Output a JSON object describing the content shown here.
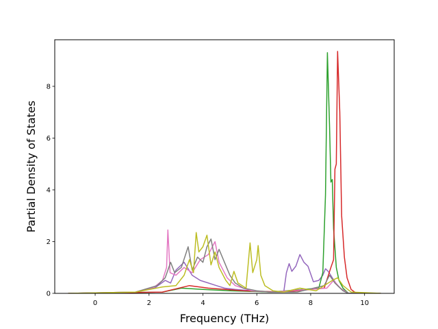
{
  "chart_data": {
    "type": "line",
    "title": "",
    "xlabel": "Frequency (THz)",
    "ylabel": "Partial Density of States",
    "xlim": [
      -1.5,
      11.1
    ],
    "ylim": [
      0,
      9.8
    ],
    "xticks": [
      0,
      2,
      4,
      6,
      8,
      10
    ],
    "yticks": [
      0,
      2,
      4,
      6,
      8
    ],
    "grid": false,
    "legend": "none",
    "series": [
      {
        "color": "#9467bd",
        "points": [
          [
            -1,
            0
          ],
          [
            1.5,
            0.05
          ],
          [
            2.2,
            0.2
          ],
          [
            2.6,
            0.5
          ],
          [
            2.8,
            0.4
          ],
          [
            3.0,
            0.9
          ],
          [
            3.3,
            1.2
          ],
          [
            3.6,
            0.7
          ],
          [
            3.9,
            0.5
          ],
          [
            4.2,
            0.4
          ],
          [
            4.5,
            0.3
          ],
          [
            4.8,
            0.2
          ],
          [
            5.2,
            0.15
          ],
          [
            5.8,
            0.1
          ],
          [
            6.5,
            0.05
          ],
          [
            7.0,
            0.05
          ],
          [
            7.1,
            0.8
          ],
          [
            7.2,
            1.15
          ],
          [
            7.3,
            0.85
          ],
          [
            7.45,
            1.05
          ],
          [
            7.6,
            1.5
          ],
          [
            7.75,
            1.2
          ],
          [
            7.9,
            1.05
          ],
          [
            8.0,
            0.75
          ],
          [
            8.1,
            0.45
          ],
          [
            8.3,
            0.5
          ],
          [
            8.45,
            0.7
          ],
          [
            8.55,
            0.95
          ],
          [
            8.65,
            0.85
          ],
          [
            8.8,
            0.6
          ],
          [
            9.0,
            0.3
          ],
          [
            9.2,
            0.1
          ],
          [
            9.4,
            0
          ],
          [
            10.6,
            0
          ]
        ]
      },
      {
        "color": "#2ca02c",
        "points": [
          [
            -1,
            0
          ],
          [
            2.5,
            0.05
          ],
          [
            3.2,
            0.2
          ],
          [
            4.0,
            0.15
          ],
          [
            5.0,
            0.1
          ],
          [
            6.5,
            0.05
          ],
          [
            8.3,
            0.2
          ],
          [
            8.45,
            0.8
          ],
          [
            8.55,
            3.8
          ],
          [
            8.62,
            9.3
          ],
          [
            8.7,
            6.5
          ],
          [
            8.75,
            4.3
          ],
          [
            8.8,
            4.4
          ],
          [
            8.85,
            2.5
          ],
          [
            8.95,
            1.0
          ],
          [
            9.05,
            0.5
          ],
          [
            9.2,
            0.2
          ],
          [
            9.4,
            0
          ],
          [
            10.6,
            0
          ]
        ]
      },
      {
        "color": "#d62728",
        "points": [
          [
            -1,
            0
          ],
          [
            2.5,
            0.05
          ],
          [
            3.5,
            0.3
          ],
          [
            4.2,
            0.2
          ],
          [
            5.5,
            0.1
          ],
          [
            7.0,
            0.05
          ],
          [
            8.5,
            0.2
          ],
          [
            8.75,
            1.0
          ],
          [
            8.85,
            1.3
          ],
          [
            8.9,
            4.8
          ],
          [
            8.95,
            5.0
          ],
          [
            9.0,
            9.35
          ],
          [
            9.08,
            7.0
          ],
          [
            9.15,
            3.0
          ],
          [
            9.25,
            1.4
          ],
          [
            9.35,
            0.6
          ],
          [
            9.5,
            0.15
          ],
          [
            9.7,
            0
          ],
          [
            10.6,
            0
          ]
        ]
      },
      {
        "color": "#e377c2",
        "points": [
          [
            -1,
            0
          ],
          [
            1.5,
            0.05
          ],
          [
            2.2,
            0.25
          ],
          [
            2.5,
            0.5
          ],
          [
            2.65,
            1.0
          ],
          [
            2.7,
            2.45
          ],
          [
            2.78,
            0.8
          ],
          [
            3.0,
            0.7
          ],
          [
            3.3,
            1.0
          ],
          [
            3.6,
            0.8
          ],
          [
            3.9,
            1.3
          ],
          [
            4.2,
            1.5
          ],
          [
            4.45,
            2.0
          ],
          [
            4.6,
            1.2
          ],
          [
            4.9,
            0.6
          ],
          [
            5.2,
            0.3
          ],
          [
            5.8,
            0.1
          ],
          [
            6.5,
            0.05
          ],
          [
            8.6,
            0.2
          ],
          [
            8.85,
            0.5
          ],
          [
            9.1,
            0.2
          ],
          [
            9.4,
            0
          ],
          [
            10.6,
            0
          ]
        ]
      },
      {
        "color": "#7f7f7f",
        "points": [
          [
            -1,
            0
          ],
          [
            1.5,
            0.05
          ],
          [
            2.3,
            0.3
          ],
          [
            2.6,
            0.6
          ],
          [
            2.8,
            1.2
          ],
          [
            2.95,
            0.8
          ],
          [
            3.2,
            1.0
          ],
          [
            3.45,
            1.8
          ],
          [
            3.6,
            0.9
          ],
          [
            3.8,
            1.4
          ],
          [
            4.0,
            1.2
          ],
          [
            4.15,
            1.8
          ],
          [
            4.3,
            2.1
          ],
          [
            4.45,
            1.3
          ],
          [
            4.6,
            1.7
          ],
          [
            4.8,
            1.2
          ],
          [
            5.0,
            0.7
          ],
          [
            5.2,
            0.4
          ],
          [
            5.5,
            0.2
          ],
          [
            6.0,
            0.1
          ],
          [
            6.5,
            0.05
          ],
          [
            7.5,
            0.05
          ],
          [
            8.5,
            0.3
          ],
          [
            8.7,
            0.7
          ],
          [
            8.9,
            0.4
          ],
          [
            9.2,
            0.1
          ],
          [
            9.4,
            0
          ],
          [
            10.6,
            0
          ]
        ]
      },
      {
        "color": "#bcbd22",
        "points": [
          [
            -1,
            0
          ],
          [
            1.5,
            0.05
          ],
          [
            2.5,
            0.25
          ],
          [
            3.0,
            0.3
          ],
          [
            3.3,
            0.7
          ],
          [
            3.5,
            1.3
          ],
          [
            3.65,
            0.8
          ],
          [
            3.75,
            2.35
          ],
          [
            3.85,
            1.6
          ],
          [
            4.0,
            1.8
          ],
          [
            4.15,
            2.25
          ],
          [
            4.3,
            1.1
          ],
          [
            4.45,
            1.6
          ],
          [
            4.6,
            1.0
          ],
          [
            4.85,
            0.5
          ],
          [
            5.0,
            0.3
          ],
          [
            5.15,
            0.85
          ],
          [
            5.3,
            0.4
          ],
          [
            5.6,
            0.2
          ],
          [
            5.75,
            1.95
          ],
          [
            5.85,
            0.8
          ],
          [
            6.0,
            1.3
          ],
          [
            6.05,
            1.85
          ],
          [
            6.15,
            0.7
          ],
          [
            6.3,
            0.3
          ],
          [
            6.6,
            0.1
          ],
          [
            7.0,
            0.05
          ],
          [
            7.6,
            0.2
          ],
          [
            8.2,
            0.1
          ],
          [
            8.5,
            0.3
          ],
          [
            8.8,
            0.5
          ],
          [
            9.0,
            0.6
          ],
          [
            9.2,
            0.3
          ],
          [
            9.5,
            0.05
          ],
          [
            10.6,
            0
          ]
        ]
      }
    ]
  }
}
